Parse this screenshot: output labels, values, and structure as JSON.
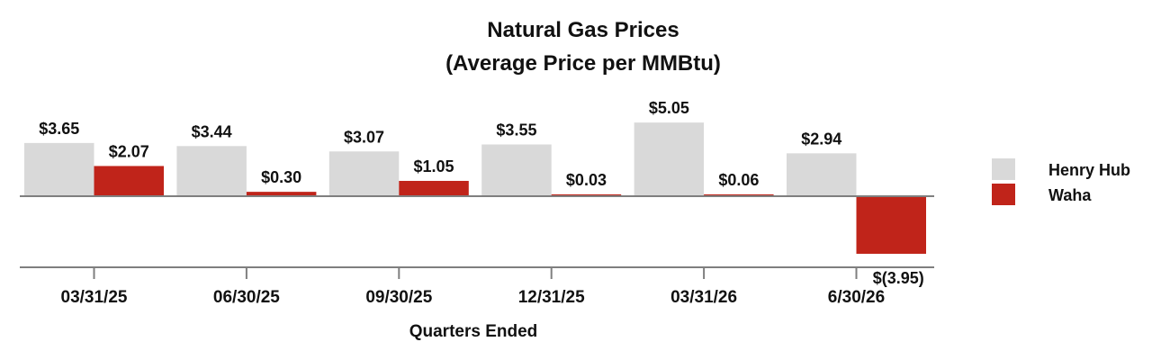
{
  "chart_data": {
    "type": "bar",
    "title": "Natural Gas Prices",
    "subtitle": "(Average Price per MMBtu)",
    "xlabel": "Quarters Ended",
    "ylabel": "",
    "categories": [
      "03/31/25",
      "06/30/25",
      "09/30/25",
      "12/31/25",
      "03/31/26",
      "6/30/26"
    ],
    "series": [
      {
        "name": "Henry Hub",
        "color": "#d9d9d9",
        "values": [
          3.65,
          3.44,
          3.07,
          3.55,
          5.05,
          2.94
        ],
        "labels": [
          "$3.65",
          "$3.44",
          "$3.07",
          "$3.55",
          "$5.05",
          "$2.94"
        ]
      },
      {
        "name": "Waha",
        "color": "#c0241a",
        "values": [
          2.07,
          0.3,
          1.05,
          0.03,
          0.06,
          -3.95
        ],
        "labels": [
          "$2.07",
          "$0.30",
          "$1.05",
          "$0.03",
          "$0.06",
          "$(3.95)"
        ]
      }
    ],
    "ylim": [
      -5,
      5.3
    ],
    "grid": false,
    "legend": "right"
  }
}
